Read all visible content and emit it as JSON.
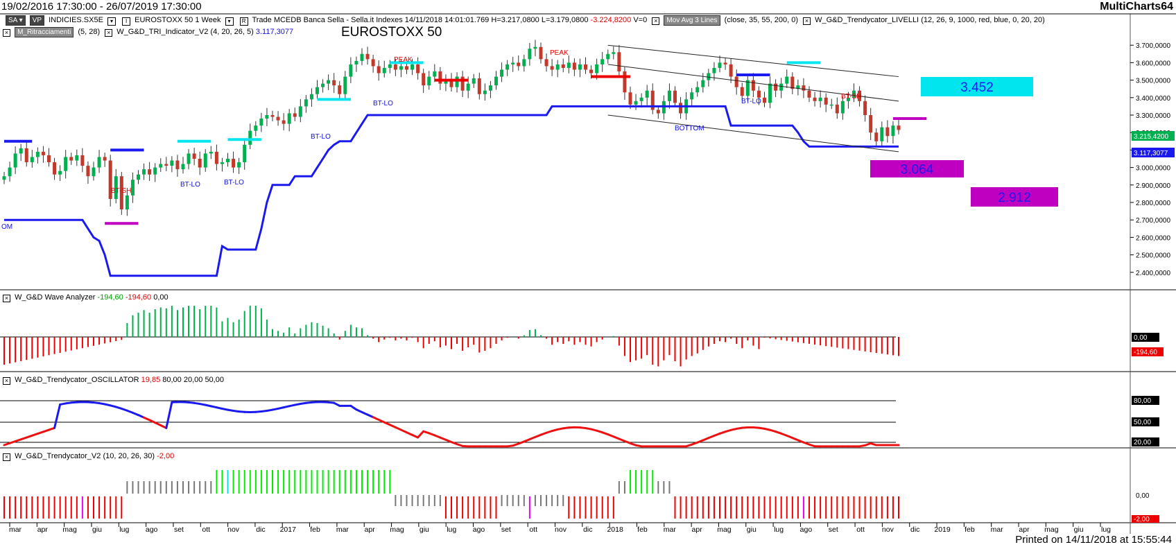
{
  "header": {
    "date_range": "19/02/2016 17:30:00 - 26/07/2019 17:30:00",
    "app_name": "MultiCharts64"
  },
  "toolbar": {
    "sa_label": "SA",
    "vp_label": "VP",
    "symbol": "INDICIES.SX5E",
    "symbol_name": "EUROSTOXX 50",
    "interval": "1 Week",
    "mode": "Trade",
    "feed": "MCEDB",
    "broker": "Banca Sella - Sella.it",
    "category": "Indexes",
    "datetime": "14/11/2018   14:01:01.769",
    "high": "H=3.217,0800",
    "low": "L=3.179,0800",
    "change": "-3.224,8200",
    "volume": "V=0",
    "mov_avg_label": "Mov Avg 3 Lines",
    "mov_avg_params": "(close,  35,  55,  200,  0)",
    "livelli_label": "W_G&D_Trendycator_LIVELLI",
    "livelli_params": "(12,  26,  9,  1000,  red,  blue,  0,  20,  20)",
    "ritracciamenti_label": "M_Ritracciamenti",
    "ritracciamenti_params": "(5,  28)",
    "tri_label": "W_G&D_TRI_Indicator_V2",
    "tri_params": "(4,  20,  26,  5)",
    "tri_value": "3.117,3077"
  },
  "chart_title": "EUROSTOXX 50",
  "colors": {
    "up_candle": "#00b050",
    "down_candle": "#c0392b",
    "level_line": "#1a1aee",
    "cyan": "#00e5ee",
    "magenta": "#c000c0",
    "osc_red": "#ee1111"
  },
  "chart_data": [
    {
      "type": "candlestick",
      "name": "price",
      "y_ticks": [
        "3.700,0000",
        "3.600,0000",
        "3.500,0000",
        "3.400,0000",
        "3.300,0000",
        "3.200,0000",
        "3.100,0000",
        "3.000,0000",
        "2.900,0000",
        "2.800,0000",
        "2.700,0000",
        "2.600,0000",
        "2.500,0000",
        "2.400,0000"
      ],
      "ylim": [
        2300,
        3800
      ],
      "last_price_label": "3.215,4200",
      "tri_level_label": "3.117,3077",
      "closes": [
        2950,
        3000,
        3080,
        3110,
        3030,
        3060,
        3090,
        3070,
        3030,
        2960,
        2980,
        3060,
        3040,
        3070,
        3010,
        2950,
        3000,
        3060,
        3040,
        2820,
        2950,
        2760,
        2840,
        2930,
        2960,
        2990,
        2960,
        3000,
        3020,
        3010,
        3040,
        2990,
        3020,
        3080,
        3050,
        3000,
        3080,
        3090,
        3020,
        3030,
        3050,
        3000,
        3030,
        3130,
        3210,
        3240,
        3280,
        3300,
        3290,
        3270,
        3250,
        3310,
        3290,
        3350,
        3390,
        3420,
        3460,
        3480,
        3500,
        3470,
        3420,
        3520,
        3590,
        3610,
        3650,
        3620,
        3580,
        3540,
        3570,
        3590,
        3560,
        3580,
        3560,
        3590,
        3540,
        3470,
        3520,
        3550,
        3480,
        3500,
        3460,
        3520,
        3440,
        3480,
        3510,
        3420,
        3440,
        3470,
        3520,
        3560,
        3590,
        3600,
        3580,
        3620,
        3680,
        3690,
        3620,
        3580,
        3560,
        3590,
        3570,
        3600,
        3560,
        3590,
        3560,
        3540,
        3590,
        3620,
        3650,
        3660,
        3550,
        3430,
        3360,
        3380,
        3400,
        3440,
        3330,
        3310,
        3380,
        3440,
        3370,
        3310,
        3390,
        3430,
        3460,
        3500,
        3540,
        3570,
        3600,
        3590,
        3520,
        3460,
        3410,
        3500,
        3440,
        3400,
        3370,
        3480,
        3440,
        3480,
        3520,
        3450,
        3470,
        3440,
        3400,
        3380,
        3400,
        3360,
        3360,
        3310,
        3380,
        3400,
        3440,
        3380,
        3300,
        3200,
        3150,
        3230,
        3180,
        3240,
        3215
      ],
      "ranges": [
        {
          "label": "3.452",
          "value": 3452,
          "color": "#00e5ee"
        },
        {
          "label": "3.064",
          "value": 3064,
          "color": "#c000c0"
        },
        {
          "label": "2.912",
          "value": 2912,
          "color": "#c000c0"
        }
      ],
      "annotations": [
        "OM",
        "BT-SH",
        "BT-LO",
        "BT-LO",
        "BT-LO",
        "BT-LO",
        "PEAK",
        "PEAK",
        "BT-LO",
        "BOTTOM",
        "BT-SH"
      ]
    },
    {
      "type": "histogram",
      "name": "W_G&D Wave Analyzer",
      "legend": [
        "-194,60",
        "-194,60",
        "0,00"
      ],
      "y_labels": [
        "0,00",
        "-194,60"
      ]
    },
    {
      "type": "line",
      "name": "W_G&D_Trendycator_OSCILLATOR",
      "legend": [
        "19,85",
        "80,00",
        "20,00",
        "50,00"
      ],
      "y_labels": [
        "80,00",
        "50,00",
        "20,00"
      ],
      "levels": [
        80,
        50,
        20
      ]
    },
    {
      "type": "bar",
      "name": "W_G&D_Trendycator_V2",
      "legend": [
        "(10,  20,  26,  30)",
        "-2,00"
      ],
      "y_labels": [
        "0,00",
        "-2,00"
      ]
    }
  ],
  "x_axis": {
    "labels": [
      "mar",
      "apr",
      "mag",
      "giu",
      "lug",
      "ago",
      "set",
      "ott",
      "nov",
      "dic",
      "2017",
      "feb",
      "mar",
      "apr",
      "mag",
      "giu",
      "lug",
      "ago",
      "set",
      "ott",
      "nov",
      "dic",
      "2018",
      "feb",
      "mar",
      "apr",
      "mag",
      "giu",
      "lug",
      "ago",
      "set",
      "ott",
      "nov",
      "dic",
      "2019",
      "feb",
      "mar",
      "apr",
      "mag",
      "giu",
      "lug"
    ]
  },
  "footer": {
    "printed": "Printed on 14/11/2018 at 15:55:44"
  }
}
